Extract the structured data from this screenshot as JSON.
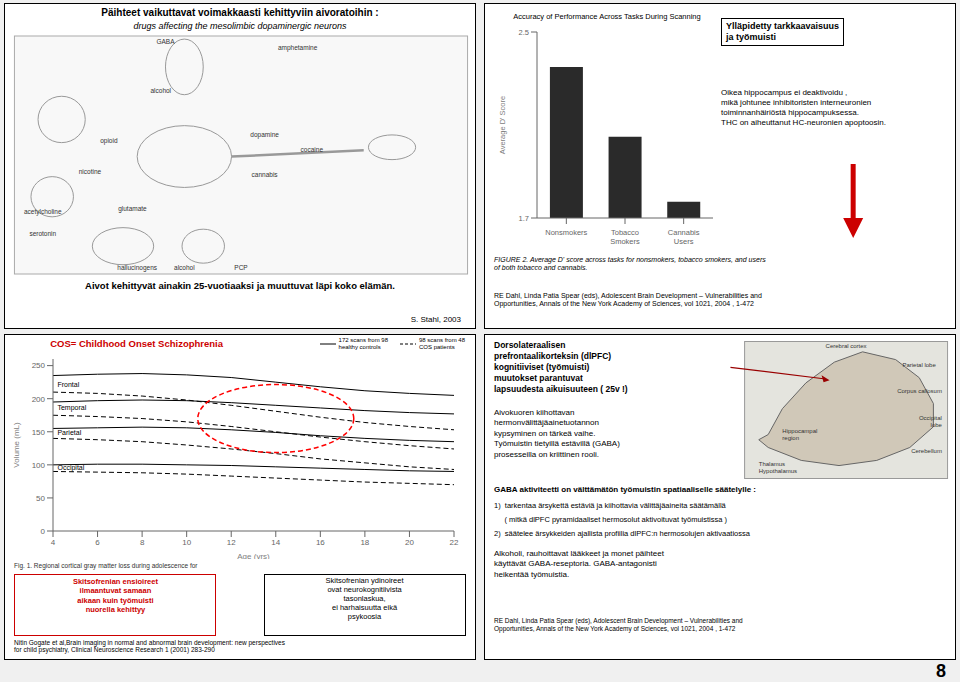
{
  "background": "#f0f0f0",
  "slide_number": "8",
  "panels": {
    "top_left": {
      "title": "Päihteet vaikuttavat voimakkaasti kehittyviin aivoratoihin :",
      "subtitle": "drugs affecting the mesolimbic dopaminergic neurons",
      "image_labels": [
        "GABA",
        "amphetamine",
        "opioid",
        "nicotine",
        "acetylcholine",
        "serotonin",
        "hallucinogens",
        "alcohol",
        "PCP",
        "glutamate",
        "dopamine",
        "cocaine",
        "cannabis",
        "alcohol"
      ],
      "caption": "Aivot kehittyvät ainakin 25-vuotiaaksi ja muuttuvat läpi koko elämän.",
      "source": "S. Stahl, 2003"
    },
    "top_right": {
      "annotation_title": "Ylläpidetty tarkkaavaisuus\nja työmuisti",
      "annotation_body": "Oikea hippocampus ei deaktivoidu ,\nmikä johtunee inhibitoristen interneuronien\ntoiminnanhäiriöstä hippocampuksessa.\nTHC on aiheuttanut HC-neuronien apoptoosin.",
      "arrow_color": "#cc0000",
      "figure_caption": "FIGURE 2.  Average D' score across tasks for nonsmokers, tobacco smokers, and users\nof both tobacco and cannabis.",
      "source": "RE Dahl, Linda Patia Spear (eds), Adolescent Brain Development – Vulnerabilities and\nOpportunities, Annals of the New York Academy of Sciences, vol 1021, 2004 , 1-472"
    },
    "bottom_left": {
      "title": "COS= Childhood Onset Schizophrenia",
      "title_color": "#cc0000",
      "figure_caption": "Fig. 1. Regional cortical gray matter loss during adolescence for",
      "box1_text": "Skitsofrenian ensioireet\nilmaantuvat samaan\naikaan kuin työmuisti\nnuorella kehittyy",
      "box1_color": "#cc0000",
      "box2_text": "Skitsofrenian ydinoireet\novat neurokognitiivista\ntasonlaskua,\nei harhaisuutta eikä\npsykoosia",
      "source": "Nitin Gogate et al,Brain imaging in normal and abnormal brain development: new perspectives\nfor child psychiatry, Clinical Neuroscience Research 1 (2001) 283-290"
    },
    "bottom_right": {
      "text1": "Dorsolateraalisen\nprefrontaalikorteksin (dlPFC)\nkognitiiviset (työmuisti)\nmuutokset parantuvat\nlapsuudesta aikuisuuteen ( 25v !)",
      "text2": "Aivokuoren kiihottavan\nhermonvälittäjäainetuotannon\nkypsyminen on tärkeä vaihe.\nTyömuistin tietyillä estävillä (GABA)\nprosesseilla on kriittinen rooli.",
      "heading": "GABA aktiviteetti on välttämätön työmuistin spatiaaliselle säätelylle :",
      "list": [
        "1)  tarkentaa ärsykettä estäviä ja kiihottavia välittäjäaineita säätämällä",
        "     ( mitkä dlPFC pyramidaaliset hermosolut aktivoituvat työmuistissa )",
        "2)  säätelee ärsykkeiden ajallista profiilia dlPFC:n hermosolujen aktivaatiossa"
      ],
      "text4": "Alkoholi, rauhoittavat lääkkeet ja monet päihteet\nkäyttävät GABA-reseptoria. GABA-antagonisti\nheikentää työmuistia.",
      "image_labels": [
        "Cerebral cortex",
        "Parietal lobe",
        "Corpus callosum",
        "Occipital\nlobe",
        "Cerebellum",
        "Thalamus",
        "Hypothalamus",
        "Hippocampal\nregion"
      ],
      "arrow_color": "#990000",
      "source": "RE Dahl, Linda Patia Spear (eds), Adolescent Brain Development – Vulnerabilities and\nOpportunities, Annals of the New York Academy of Sciences, vol 1021, 2004 , 1-472"
    }
  },
  "chart_data": [
    {
      "type": "bar",
      "title": "Accuracy of Performance Across Tasks During Scanning",
      "y_label": "Average D' Score",
      "categories": [
        "Nonsmokers",
        "Tobacco Smokers",
        "Cannabis Users"
      ],
      "values": [
        2.35,
        2.05,
        1.77
      ],
      "color": "#2a2a2a",
      "ylim": [
        1.7,
        2.5
      ],
      "yticks": [
        1.7,
        2.5
      ],
      "grid": false
    },
    {
      "type": "line",
      "x_label": "Age (yrs)",
      "y_label": "Volume (mL)",
      "x": [
        4,
        6,
        8,
        10,
        12,
        14,
        16,
        18,
        20,
        22
      ],
      "xlim": [
        4,
        22
      ],
      "xticks": [
        4,
        6,
        8,
        10,
        12,
        14,
        16,
        18,
        20,
        22
      ],
      "ylim": [
        0,
        260
      ],
      "yticks": [
        0,
        50,
        100,
        150,
        200,
        250
      ],
      "grid": false,
      "series": [
        {
          "color": "#000000",
          "line_style": "solid",
          "values": [
            235,
            237,
            238,
            236,
            232,
            225,
            218,
            212,
            208,
            205
          ]
        },
        {
          "color": "#000000",
          "line_style": "solid",
          "values": [
            195,
            197,
            198,
            197,
            194,
            190,
            186,
            182,
            179,
            177
          ]
        },
        {
          "color": "#000000",
          "line_style": "solid",
          "values": [
            155,
            156,
            157,
            156,
            153,
            149,
            144,
            140,
            137,
            135
          ]
        },
        {
          "color": "#000000",
          "line_style": "solid",
          "values": [
            100,
            101,
            101,
            100,
            99,
            97,
            95,
            93,
            91,
            90
          ]
        },
        {
          "color": "#000000",
          "line_style": "dashed",
          "values": [
            210,
            208,
            204,
            198,
            190,
            181,
            172,
            164,
            158,
            153
          ]
        },
        {
          "color": "#000000",
          "line_style": "dashed",
          "values": [
            175,
            173,
            170,
            165,
            158,
            150,
            142,
            135,
            129,
            124
          ]
        },
        {
          "color": "#000000",
          "line_style": "dashed",
          "values": [
            140,
            138,
            135,
            130,
            124,
            117,
            109,
            103,
            97,
            93
          ]
        },
        {
          "color": "#000000",
          "line_style": "dashed",
          "values": [
            90,
            89,
            88,
            86,
            83,
            80,
            77,
            74,
            72,
            70
          ]
        }
      ],
      "annotations": [
        "Frontal",
        "Temporal",
        "Parietal",
        "Occipital"
      ],
      "legend_entries": [
        {
          "label": "172 scans from 98\nhealthy controls",
          "line_style": "solid"
        },
        {
          "label": "98 scans from 48\nCOS patients",
          "line_style": "dashed"
        }
      ],
      "highlight_color": "#ff0000"
    }
  ]
}
